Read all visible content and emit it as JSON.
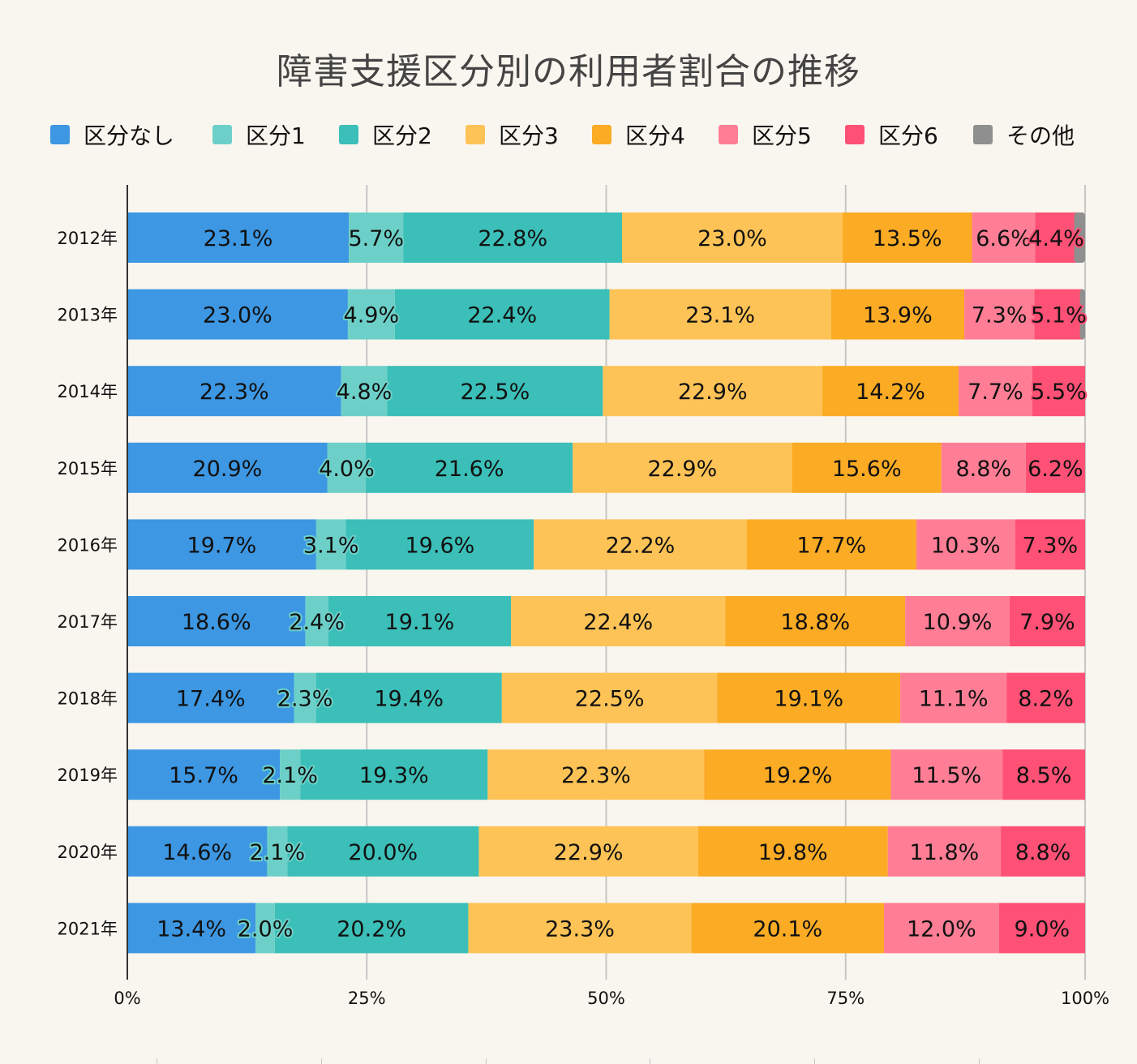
{
  "title": "障害支援区分別の利用者割合の推移",
  "legend": [
    {
      "label": "区分なし",
      "color": "#3d97e3"
    },
    {
      "label": "区分1",
      "color": "#6dd0c8"
    },
    {
      "label": "区分2",
      "color": "#3bbfb8"
    },
    {
      "label": "区分3",
      "color": "#fec356"
    },
    {
      "label": "区分4",
      "color": "#fbab24"
    },
    {
      "label": "区分5",
      "color": "#ff7e95"
    },
    {
      "label": "区分6",
      "color": "#ff5175"
    },
    {
      "label": "その他",
      "color": "#8f8f8f"
    }
  ],
  "chart_data": {
    "type": "bar",
    "orientation": "horizontal",
    "stacked": "percent",
    "title": "障害支援区分別の利用者割合の推移",
    "categories": [
      "2012年",
      "2013年",
      "2014年",
      "2015年",
      "2016年",
      "2017年",
      "2018年",
      "2019年",
      "2020年",
      "2021年"
    ],
    "series": [
      {
        "name": "区分なし",
        "values": [
          23.1,
          23.0,
          22.3,
          20.9,
          19.7,
          18.6,
          17.4,
          15.7,
          14.6,
          13.4
        ]
      },
      {
        "name": "区分1",
        "values": [
          5.7,
          4.9,
          4.8,
          4.0,
          3.1,
          2.4,
          2.3,
          2.1,
          2.1,
          2.0
        ]
      },
      {
        "name": "区分2",
        "values": [
          22.8,
          22.4,
          22.5,
          21.6,
          19.6,
          19.1,
          19.4,
          19.3,
          20.0,
          20.2
        ]
      },
      {
        "name": "区分3",
        "values": [
          23.0,
          23.1,
          22.9,
          22.9,
          22.2,
          22.4,
          22.5,
          22.3,
          22.9,
          23.3
        ]
      },
      {
        "name": "区分4",
        "values": [
          13.5,
          13.9,
          14.2,
          15.6,
          17.7,
          18.8,
          19.1,
          19.2,
          19.8,
          20.1
        ]
      },
      {
        "name": "区分5",
        "values": [
          6.6,
          7.3,
          7.7,
          8.8,
          10.3,
          10.9,
          11.1,
          11.5,
          11.8,
          12.0
        ]
      },
      {
        "name": "区分6",
        "values": [
          4.4,
          5.1,
          5.5,
          6.2,
          7.3,
          7.9,
          8.2,
          8.5,
          8.8,
          9.0
        ]
      },
      {
        "name": "その他",
        "values": [
          0.8,
          0.2,
          0,
          0,
          0,
          0,
          0,
          0,
          0,
          0
        ],
        "labeled": false
      }
    ],
    "xlim": [
      0,
      100
    ],
    "x_ticks": [
      "0%",
      "25%",
      "50%",
      "75%",
      "100%"
    ],
    "x_tick_values": [
      0,
      25,
      50,
      75,
      100
    ],
    "grid": true,
    "legend_position": "top",
    "label_format": "{v}%"
  }
}
